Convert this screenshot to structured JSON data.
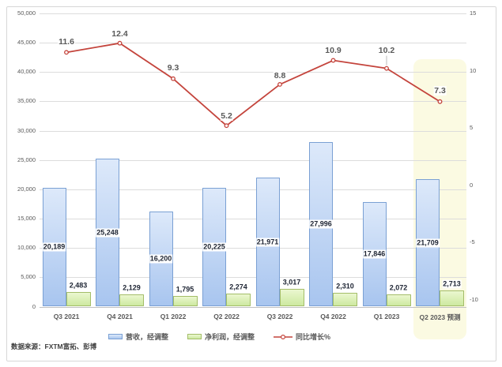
{
  "chart_data": {
    "type": "combo-bar-line",
    "title": "",
    "categories": [
      "Q3 2021",
      "Q4 2021",
      "Q1 2022",
      "Q2 2022",
      "Q3 2022",
      "Q4 2022",
      "Q1 2023",
      "Q2 2023 预测"
    ],
    "series": [
      {
        "name": "营收，经调整",
        "type": "bar",
        "fill_top": "#dde9fa",
        "fill_bottom": "#a8c5ef",
        "border": "#7aa0d4",
        "values": [
          20189,
          25248,
          16200,
          20225,
          21971,
          27996,
          17846,
          21709
        ],
        "labels": [
          "20,189",
          "25,248",
          "16,200",
          "20,225",
          "21,971",
          "27,996",
          "17,846",
          "21,709"
        ]
      },
      {
        "name": "净利润，经调整",
        "type": "bar",
        "fill_top": "#ebf7d0",
        "fill_bottom": "#cde9a0",
        "border": "#a3bd68",
        "values": [
          2483,
          2129,
          1795,
          2274,
          3017,
          2310,
          2072,
          2713
        ],
        "labels": [
          "2,483",
          "2,129",
          "1,795",
          "2,274",
          "3,017",
          "2,310",
          "2,072",
          "2,713"
        ]
      },
      {
        "name": "同比增长%",
        "type": "line",
        "color": "#c4443c",
        "values": [
          11.6,
          12.4,
          9.3,
          5.2,
          8.8,
          10.9,
          10.2,
          7.3
        ],
        "labels": [
          "11.6",
          "12.4",
          "9.3",
          "5.2",
          "8.8",
          "10.9",
          "10.2",
          "7.3"
        ]
      }
    ],
    "left_axis": {
      "min": 0,
      "max": 50000,
      "ticks": [
        "50,000",
        "45,000",
        "40,000",
        "35,000",
        "30,000",
        "25,000",
        "20,000",
        "15,000",
        "10,000",
        "5,000",
        "0"
      ]
    },
    "right_axis": {
      "min": -10,
      "max": 15,
      "ticks": [
        "15",
        "10",
        "5",
        "0",
        "-5",
        "-10"
      ]
    },
    "forecast_highlight": {
      "category": "Q2 2023 预测",
      "color": "#fbfae2"
    },
    "source": "数据来源：FXTM富拓、彭博"
  }
}
